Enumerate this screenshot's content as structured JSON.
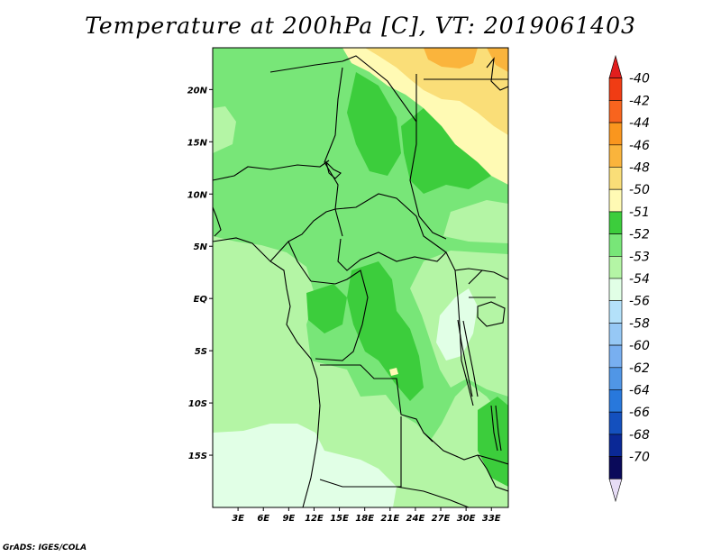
{
  "title": "Temperature at 200hPa [C], VT: 2019061403",
  "credit": "GrADS: IGES/COLA",
  "map": {
    "lon_range": [
      0,
      35
    ],
    "lat_range": [
      -20,
      24
    ],
    "lat_ticks": [
      {
        "value": 20,
        "label": "20N"
      },
      {
        "value": 15,
        "label": "15N"
      },
      {
        "value": 10,
        "label": "10N"
      },
      {
        "value": 5,
        "label": "5N"
      },
      {
        "value": 0,
        "label": "EQ"
      },
      {
        "value": -5,
        "label": "5S"
      },
      {
        "value": -10,
        "label": "10S"
      },
      {
        "value": -15,
        "label": "15S"
      }
    ],
    "lon_ticks": [
      {
        "value": 3,
        "label": "3E"
      },
      {
        "value": 6,
        "label": "6E"
      },
      {
        "value": 9,
        "label": "9E"
      },
      {
        "value": 12,
        "label": "12E"
      },
      {
        "value": 15,
        "label": "15E"
      },
      {
        "value": 18,
        "label": "18E"
      },
      {
        "value": 21,
        "label": "21E"
      },
      {
        "value": 24,
        "label": "24E"
      },
      {
        "value": 27,
        "label": "27E"
      },
      {
        "value": 30,
        "label": "30E"
      },
      {
        "value": 33,
        "label": "33E"
      }
    ]
  },
  "colorbar": {
    "labels": [
      "-40",
      "-42",
      "-44",
      "-46",
      "-48",
      "-50",
      "-51",
      "-52",
      "-53",
      "-54",
      "-56",
      "-58",
      "-60",
      "-62",
      "-64",
      "-66",
      "-68",
      "-70"
    ],
    "colors": [
      "#e11e1e",
      "#f03c14",
      "#f8641e",
      "#fa961e",
      "#fab43c",
      "#fade78",
      "#fffab4",
      "#3ccd3c",
      "#78e678",
      "#b4f5a5",
      "#e1ffe6",
      "#b4e1fa",
      "#96c8f5",
      "#78aff0",
      "#5096e6",
      "#2878dc",
      "#1450be",
      "#0a2896",
      "#0a0a5a",
      "#e6dcf5"
    ]
  },
  "colors": {
    "c51": "#fffab4",
    "c50": "#fade78",
    "c48": "#fab43c",
    "c52": "#3ccd3c",
    "c53": "#78e678",
    "c54": "#b4f5a5",
    "c56": "#e1ffe6"
  }
}
